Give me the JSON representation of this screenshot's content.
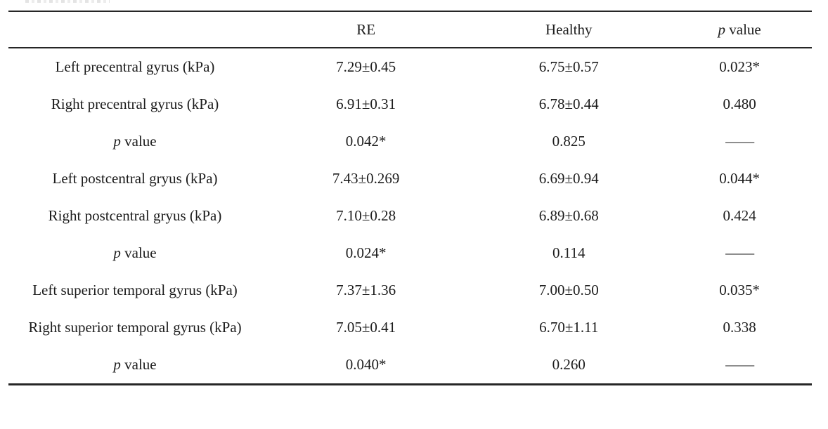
{
  "page": {
    "background_color": "#ffffff",
    "text_color": "#1c1c1c",
    "rule_color": "#262626"
  },
  "table": {
    "headers": {
      "col1": "",
      "col2": "RE",
      "col3": "Healthy",
      "col4_p": "p",
      "col4_rest": " value"
    },
    "rows": [
      {
        "label": "Left precentral gyrus (kPa)",
        "re": "7.29±0.45",
        "healthy": "6.75±0.57",
        "p": "0.023*"
      },
      {
        "label": "Right precentral gyrus (kPa)",
        "re": "6.91±0.31",
        "healthy": "6.78±0.44",
        "p": "0.480"
      },
      {
        "label_p": "p",
        "label_rest": " value",
        "re": "0.042*",
        "healthy": "0.825",
        "p": "——"
      },
      {
        "label": "Left postcentral gryus (kPa)",
        "re": "7.43±0.269",
        "healthy": "6.69±0.94",
        "p": "0.044*"
      },
      {
        "label": "Right postcentral gryus (kPa)",
        "re": "7.10±0.28",
        "healthy": "6.89±0.68",
        "p": "0.424"
      },
      {
        "label_p": "p",
        "label_rest": " value",
        "re": "0.024*",
        "healthy": "0.114",
        "p": "——"
      },
      {
        "label": "Left superior temporal gyrus (kPa)",
        "re": "7.37±1.36",
        "healthy": "7.00±0.50",
        "p": "0.035*"
      },
      {
        "label": "Right superior temporal gyrus (kPa)",
        "re": "7.05±0.41",
        "healthy": "6.70±1.11",
        "p": "0.338"
      },
      {
        "label_p": "p",
        "label_rest": " value",
        "re": "0.040*",
        "healthy": "0.260",
        "p": "——"
      }
    ]
  },
  "chart_data": {
    "type": "table",
    "title": "",
    "columns": [
      "",
      "RE",
      "Healthy",
      "p value"
    ],
    "rows": [
      [
        "Left precentral gyrus (kPa)",
        "7.29±0.45",
        "6.75±0.57",
        "0.023*"
      ],
      [
        "Right precentral gyrus (kPa)",
        "6.91±0.31",
        "6.78±0.44",
        "0.480"
      ],
      [
        "p value",
        "0.042*",
        "0.825",
        "——"
      ],
      [
        "Left postcentral gryus (kPa)",
        "7.43±0.269",
        "6.69±0.94",
        "0.044*"
      ],
      [
        "Right postcentral gryus (kPa)",
        "7.10±0.28",
        "6.89±0.68",
        "0.424"
      ],
      [
        "p value",
        "0.024*",
        "0.114",
        "——"
      ],
      [
        "Left superior temporal gyrus (kPa)",
        "7.37±1.36",
        "7.00±0.50",
        "0.035*"
      ],
      [
        "Right superior temporal gyrus (kPa)",
        "7.05±0.41",
        "6.70±1.11",
        "0.338"
      ],
      [
        "p value",
        "0.040*",
        "0.260",
        "——"
      ]
    ]
  }
}
